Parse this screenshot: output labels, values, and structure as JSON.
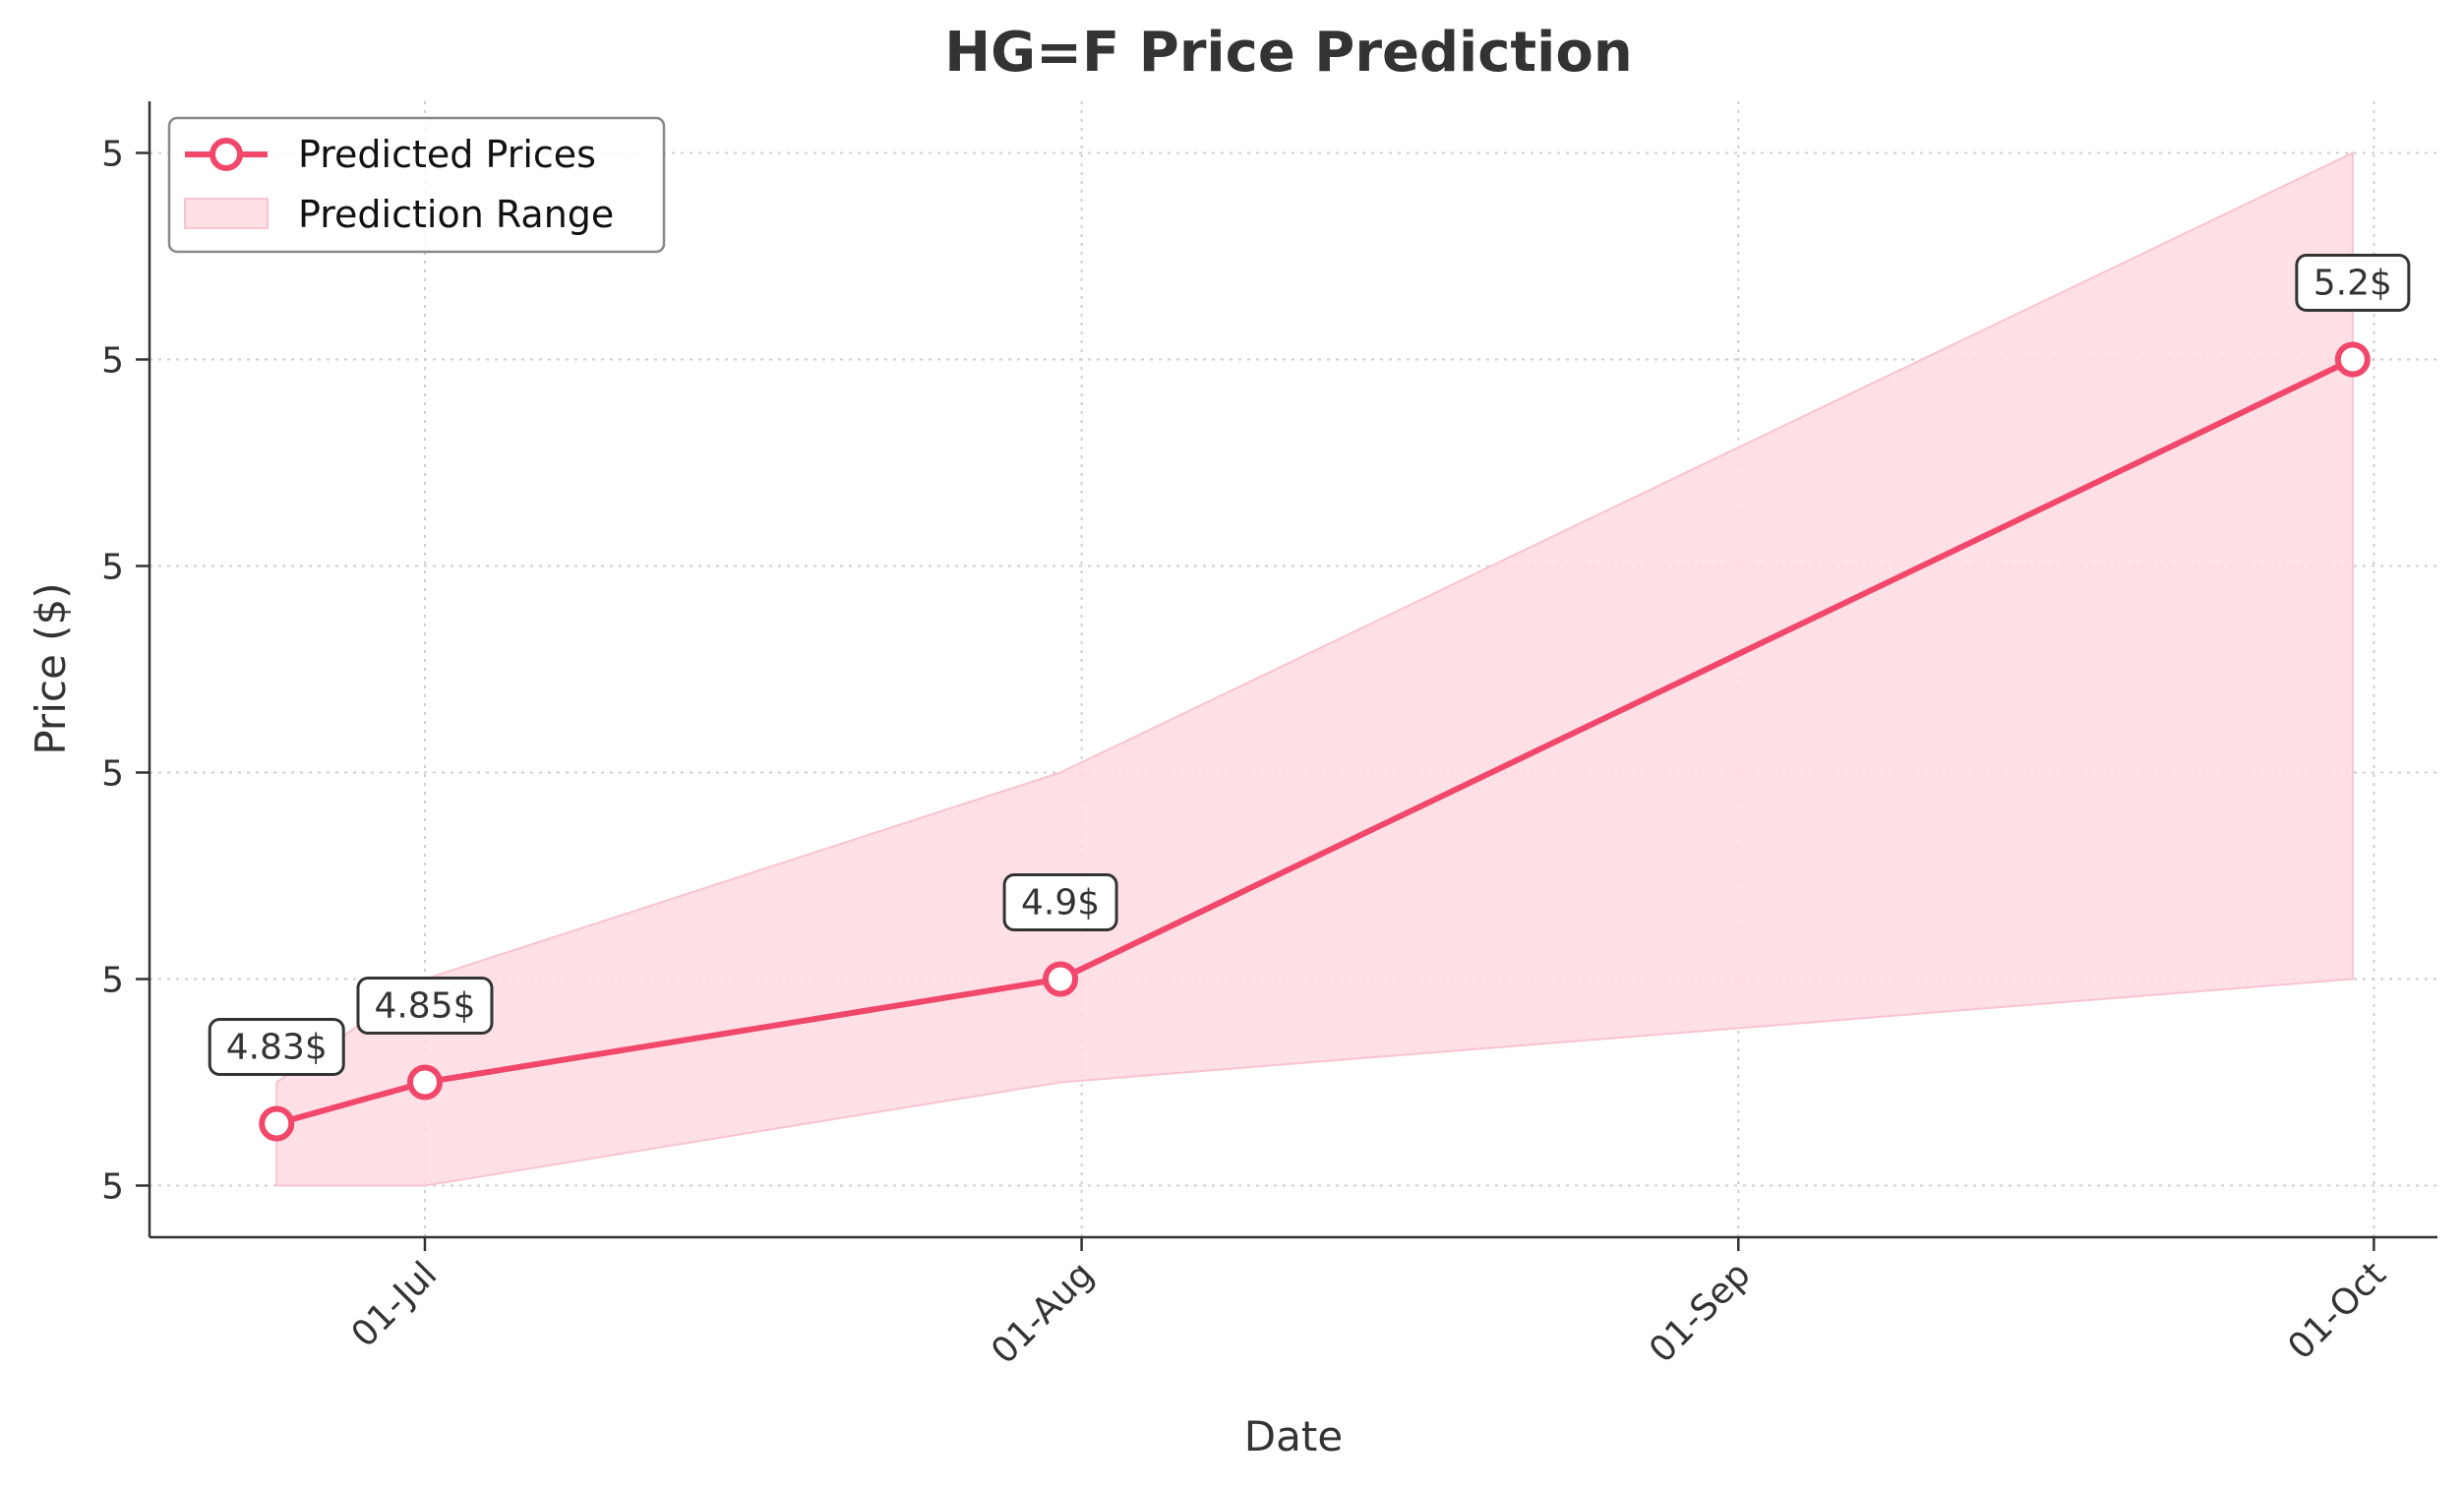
{
  "chart_data": {
    "type": "line",
    "title": "HG=F Price Prediction",
    "xlabel": "Date",
    "ylabel": "Price ($)",
    "x_ticks": [
      {
        "date": "2024-07-01",
        "label": "01-Jul"
      },
      {
        "date": "2024-08-01",
        "label": "01-Aug"
      },
      {
        "date": "2024-09-01",
        "label": "01-Sep"
      },
      {
        "date": "2024-10-01",
        "label": "01-Oct"
      }
    ],
    "y_ticks": [
      {
        "value": 4.8,
        "label": "5"
      },
      {
        "value": 4.9,
        "label": "5"
      },
      {
        "value": 5.0,
        "label": "5"
      },
      {
        "value": 5.1,
        "label": "5"
      },
      {
        "value": 5.2,
        "label": "5"
      },
      {
        "value": 5.3,
        "label": "5"
      }
    ],
    "xlim": [
      "2024-06-18",
      "2024-10-04"
    ],
    "ylim": [
      4.775,
      5.325
    ],
    "grid": true,
    "legend_position": "top-left",
    "series": [
      {
        "name": "Predicted Prices",
        "color": "#f0476a",
        "points": [
          {
            "date": "2024-06-24",
            "value": 4.83,
            "label": "4.83$"
          },
          {
            "date": "2024-07-01",
            "value": 4.85,
            "label": "4.85$"
          },
          {
            "date": "2024-07-31",
            "value": 4.9,
            "label": "4.9$"
          },
          {
            "date": "2024-09-30",
            "value": 5.2,
            "label": "5.2$"
          }
        ]
      }
    ],
    "range": {
      "name": "Prediction Range",
      "color": "#ffdbe2",
      "upper": [
        {
          "date": "2024-06-24",
          "value": 4.85
        },
        {
          "date": "2024-07-01",
          "value": 4.9
        },
        {
          "date": "2024-07-31",
          "value": 5.0
        },
        {
          "date": "2024-09-30",
          "value": 5.3
        }
      ],
      "lower": [
        {
          "date": "2024-06-24",
          "value": 4.8
        },
        {
          "date": "2024-07-01",
          "value": 4.8
        },
        {
          "date": "2024-07-31",
          "value": 4.85
        },
        {
          "date": "2024-09-30",
          "value": 4.9
        }
      ]
    }
  }
}
